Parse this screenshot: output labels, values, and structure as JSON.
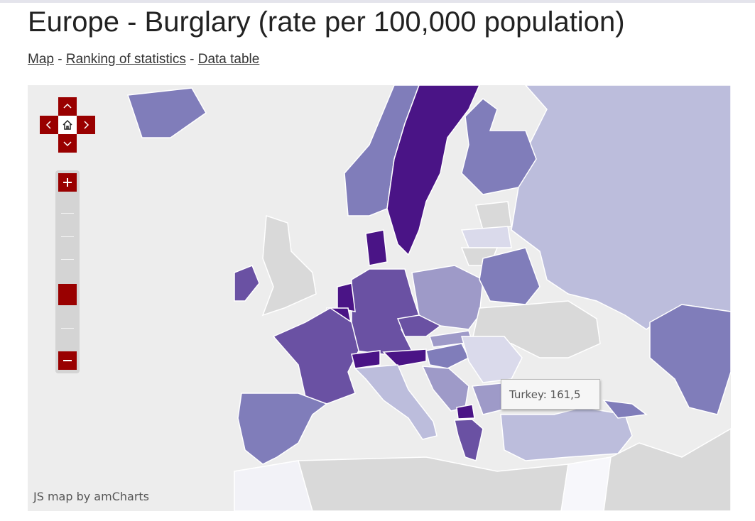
{
  "header": {
    "title": "Europe - Burglary (rate per 100,000 population)"
  },
  "nav": {
    "links": [
      "Map",
      "Ranking of statistics",
      "Data table"
    ],
    "separator": "-"
  },
  "map": {
    "tooltip": "Turkey: 161,5",
    "credit": "JS map by amCharts"
  }
}
